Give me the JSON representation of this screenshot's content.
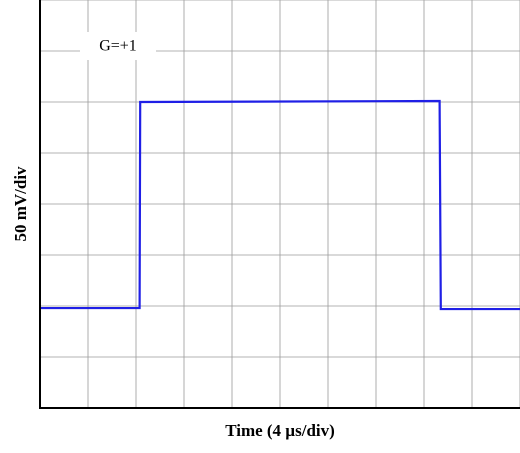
{
  "chart_data": {
    "type": "line",
    "annotation": "G=+1",
    "x_label": "Time (4 µs/div)",
    "y_label": "50 mV/div",
    "x": [
      0,
      8.3,
      8.35,
      33.3,
      33.4,
      40
    ],
    "series": [
      {
        "color": "#1f1fe6",
        "values": [
          98,
          98,
          300,
          301,
          97,
          97
        ]
      }
    ],
    "xlim": [
      0,
      40
    ],
    "ylim": [
      0,
      400
    ],
    "xticks": [
      0,
      4,
      8,
      12,
      16,
      20,
      24,
      28,
      32,
      36,
      40
    ],
    "yticks": [
      0,
      50,
      100,
      150,
      200,
      250,
      300,
      350,
      400
    ],
    "grid": true
  }
}
